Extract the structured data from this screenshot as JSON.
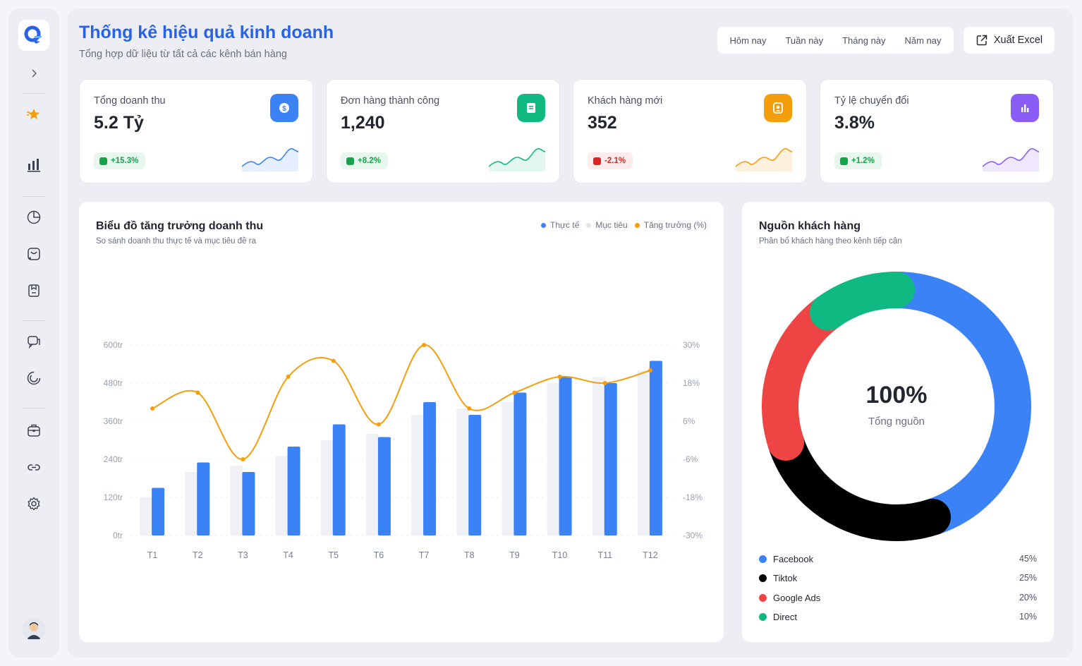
{
  "header": {
    "title": "Thống kê hiệu quả kinh doanh",
    "subtitle": "Tổng hợp dữ liệu từ tất cả các kênh bán hàng"
  },
  "filters": [
    "Hôm nay",
    "Tuần này",
    "Tháng này",
    "Năm nay"
  ],
  "export_label": "Xuất Excel",
  "kpis": [
    {
      "label": "Tổng doanh thu",
      "value": "5.2 Tỷ",
      "change": "+15.3%",
      "color": "#3b82f6",
      "fill": "#e6efff",
      "trend": "up"
    },
    {
      "label": "Đơn hàng thành công",
      "value": "1,240",
      "change": "+8.2%",
      "color": "#10b981",
      "fill": "#e3f7ef",
      "trend": "up"
    },
    {
      "label": "Khách hàng mới",
      "value": "352",
      "change": "-2.1%",
      "color": "#f59e0b",
      "fill": "#fdf0dc",
      "trend": "down"
    },
    {
      "label": "Tỷ lệ chuyển đổi",
      "value": "3.8%",
      "change": "+1.2%",
      "color": "#8b5cf6",
      "fill": "#efe8fd",
      "trend": "up"
    }
  ],
  "revenue_card": {
    "title": "Biểu đồ tăng trưởng doanh thu",
    "subtitle": "So sánh doanh thu thực tế và mục tiêu đề ra",
    "legend": [
      "Thực tế",
      "Mục tiêu",
      "Tăng trưởng (%)"
    ]
  },
  "source_card": {
    "title": "Nguồn khách hàng",
    "subtitle": "Phân bổ khách hàng theo kênh tiếp cận",
    "center_value": "100%",
    "center_label": "Tổng nguồn",
    "items": [
      {
        "name": "Facebook",
        "pct": "45%",
        "color": "#3b82f6"
      },
      {
        "name": "Tiktok",
        "pct": "25%",
        "color": "#000000"
      },
      {
        "name": "Google Ads",
        "pct": "20%",
        "color": "#ef4444"
      },
      {
        "name": "Direct",
        "pct": "10%",
        "color": "#10b981"
      }
    ]
  },
  "chart_data": [
    {
      "type": "bar",
      "categories": [
        "T1",
        "T2",
        "T3",
        "T4",
        "T5",
        "T6",
        "T7",
        "T8",
        "T9",
        "T10",
        "T11",
        "T12"
      ],
      "series": [
        {
          "name": "Thực tế",
          "type": "bar",
          "color": "#3b82f6",
          "values": [
            150,
            230,
            200,
            280,
            350,
            310,
            420,
            380,
            450,
            500,
            480,
            550
          ]
        },
        {
          "name": "Mục tiêu",
          "type": "bar",
          "color": "#f0f1f4",
          "values": [
            120,
            200,
            220,
            250,
            300,
            320,
            380,
            400,
            420,
            480,
            500,
            520
          ]
        },
        {
          "name": "Tăng trưởng (%)",
          "type": "line",
          "axis": "right",
          "color": "#f59e0b",
          "values": [
            10,
            15,
            -6,
            20,
            25,
            5,
            30,
            10,
            15,
            20,
            18,
            22
          ]
        }
      ],
      "yticks_left": [
        "0tr",
        "120tr",
        "240tr",
        "360tr",
        "480tr",
        "600tr"
      ],
      "yticks_right": [
        "-30%",
        "-18%",
        "-6%",
        "6%",
        "18%",
        "30%"
      ],
      "ylim_left": [
        0,
        600
      ],
      "ylim_right": [
        -30,
        30
      ],
      "grid": true
    },
    {
      "type": "pie",
      "categories": [
        "Facebook",
        "Tiktok",
        "Google Ads",
        "Direct"
      ],
      "values": [
        45,
        25,
        20,
        10
      ]
    }
  ]
}
